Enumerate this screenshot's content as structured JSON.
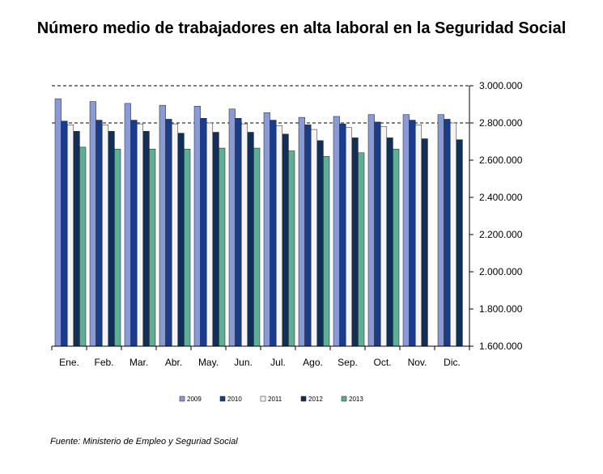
{
  "title": "Número medio de trabajadores en alta laboral en la Seguridad Social",
  "source": "Fuente: Ministerio de Empleo y Seguriad Social",
  "colors": [
    "#8a9ad6",
    "#1a3c8c",
    "#f4f4f4",
    "#123057",
    "#5fae96"
  ],
  "chart_data": {
    "type": "bar",
    "title": "Número medio de trabajadores en alta laboral en la Seguridad Social",
    "xlabel": "",
    "ylabel": "",
    "ylim": [
      1600000,
      3000000
    ],
    "yticks": [
      1600000,
      1800000,
      2000000,
      2200000,
      2400000,
      2600000,
      2800000,
      3000000
    ],
    "ytick_labels": [
      "1.600.000",
      "1.800.000",
      "2.000.000",
      "2.200.000",
      "2.400.000",
      "2.600.000",
      "2.800.000",
      "3.000.000"
    ],
    "categories": [
      "Ene.",
      "Feb.",
      "Mar.",
      "Abr.",
      "May.",
      "Jun.",
      "Jul.",
      "Ago.",
      "Sep.",
      "Oct.",
      "Nov.",
      "Dic."
    ],
    "grid": "dashed horizontal at 2.800.000 and 3.000.000",
    "legend_position": "bottom",
    "series": [
      {
        "name": "2009",
        "values": [
          2930000,
          2915000,
          2905000,
          2895000,
          2890000,
          2875000,
          2855000,
          2830000,
          2835000,
          2845000,
          2845000,
          2845000
        ]
      },
      {
        "name": "2010",
        "values": [
          2810000,
          2815000,
          2815000,
          2820000,
          2825000,
          2825000,
          2815000,
          2790000,
          2795000,
          2805000,
          2815000,
          2820000
        ]
      },
      {
        "name": "2011",
        "values": [
          2790000,
          2790000,
          2795000,
          2795000,
          2800000,
          2795000,
          2785000,
          2765000,
          2775000,
          2780000,
          2790000,
          2800000
        ]
      },
      {
        "name": "2012",
        "values": [
          2755000,
          2755000,
          2755000,
          2745000,
          2750000,
          2750000,
          2740000,
          2705000,
          2720000,
          2720000,
          2715000,
          2710000
        ]
      },
      {
        "name": "2013",
        "values": [
          2670000,
          2660000,
          2660000,
          2660000,
          2665000,
          2665000,
          2650000,
          2620000,
          2640000,
          2660000,
          null,
          null
        ]
      }
    ]
  }
}
